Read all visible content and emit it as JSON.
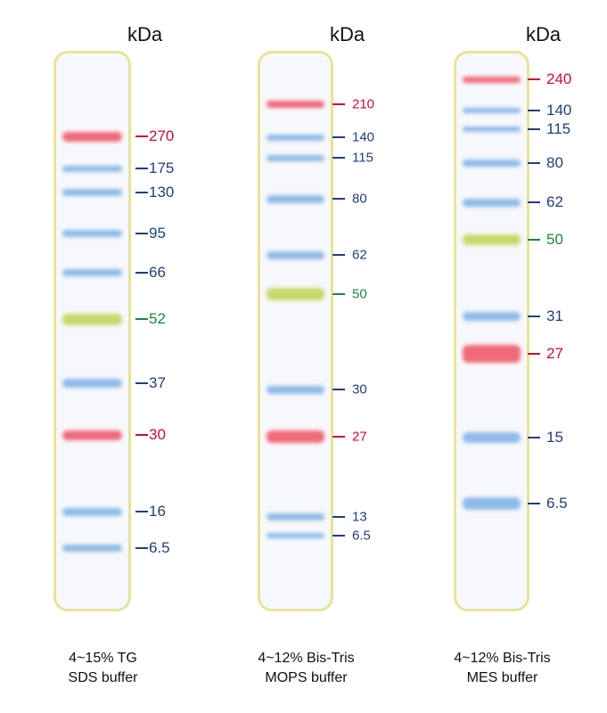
{
  "unit_label": "kDa",
  "colors": {
    "red": "#c8102e",
    "blue": "#1f3f7a",
    "green": "#1a8a3e",
    "band_red": "#f06a7a",
    "band_blue": "#8fbbe8",
    "band_green": "#c8d86a",
    "lane_border": "#e8e39a"
  },
  "lanes": [
    {
      "caption_line1": "4~15% TG",
      "caption_line2": "SDS buffer",
      "markers": [
        {
          "label": "270",
          "color": "red"
        },
        {
          "label": "175",
          "color": "blue"
        },
        {
          "label": "130",
          "color": "blue"
        },
        {
          "label": "95",
          "color": "blue"
        },
        {
          "label": "66",
          "color": "blue"
        },
        {
          "label": "52",
          "color": "green"
        },
        {
          "label": "37",
          "color": "blue"
        },
        {
          "label": "30",
          "color": "red"
        },
        {
          "label": "16",
          "color": "blue"
        },
        {
          "label": "6.5",
          "color": "blue"
        }
      ]
    },
    {
      "caption_line1": "4~12% Bis-Tris",
      "caption_line2": "MOPS buffer",
      "markers": [
        {
          "label": "210",
          "color": "red"
        },
        {
          "label": "140",
          "color": "blue"
        },
        {
          "label": "115",
          "color": "blue"
        },
        {
          "label": "80",
          "color": "blue"
        },
        {
          "label": "62",
          "color": "blue"
        },
        {
          "label": "50",
          "color": "green"
        },
        {
          "label": "30",
          "color": "blue"
        },
        {
          "label": "27",
          "color": "red"
        },
        {
          "label": "13",
          "color": "blue"
        },
        {
          "label": "6.5",
          "color": "blue"
        }
      ]
    },
    {
      "caption_line1": "4~12% Bis-Tris",
      "caption_line2": "MES buffer",
      "markers": [
        {
          "label": "240",
          "color": "red"
        },
        {
          "label": "140",
          "color": "blue"
        },
        {
          "label": "115",
          "color": "blue"
        },
        {
          "label": "80",
          "color": "blue"
        },
        {
          "label": "62",
          "color": "blue"
        },
        {
          "label": "50",
          "color": "green"
        },
        {
          "label": "31",
          "color": "blue"
        },
        {
          "label": "27",
          "color": "red"
        },
        {
          "label": "15",
          "color": "blue"
        },
        {
          "label": "6.5",
          "color": "blue"
        }
      ]
    }
  ]
}
